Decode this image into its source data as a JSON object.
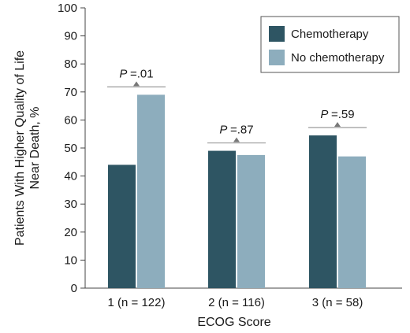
{
  "chart_data": {
    "type": "bar",
    "title": "",
    "xlabel": "ECOG Score",
    "ylabel_lines": [
      "Patients With Higher Quality of Life",
      "Near Death, %"
    ],
    "ylim": [
      0,
      100
    ],
    "yticks": [
      0,
      10,
      20,
      30,
      40,
      50,
      60,
      70,
      80,
      90,
      100
    ],
    "categories": [
      "1 (n = 122)",
      "2 (n = 116)",
      "3 (n = 58)"
    ],
    "series": [
      {
        "name": "Chemotherapy",
        "color": "#2e5563",
        "values": [
          44,
          49,
          54.5
        ]
      },
      {
        "name": "No chemotherapy",
        "color": "#8dadbd",
        "values": [
          69,
          47.5,
          47
        ]
      }
    ],
    "annotations": [
      {
        "p_label": "P",
        "p_value": "=.01"
      },
      {
        "p_label": "P",
        "p_value": "=.87"
      },
      {
        "p_label": "P",
        "p_value": "=.59"
      }
    ],
    "legend_position": "top-right",
    "grid": false
  }
}
